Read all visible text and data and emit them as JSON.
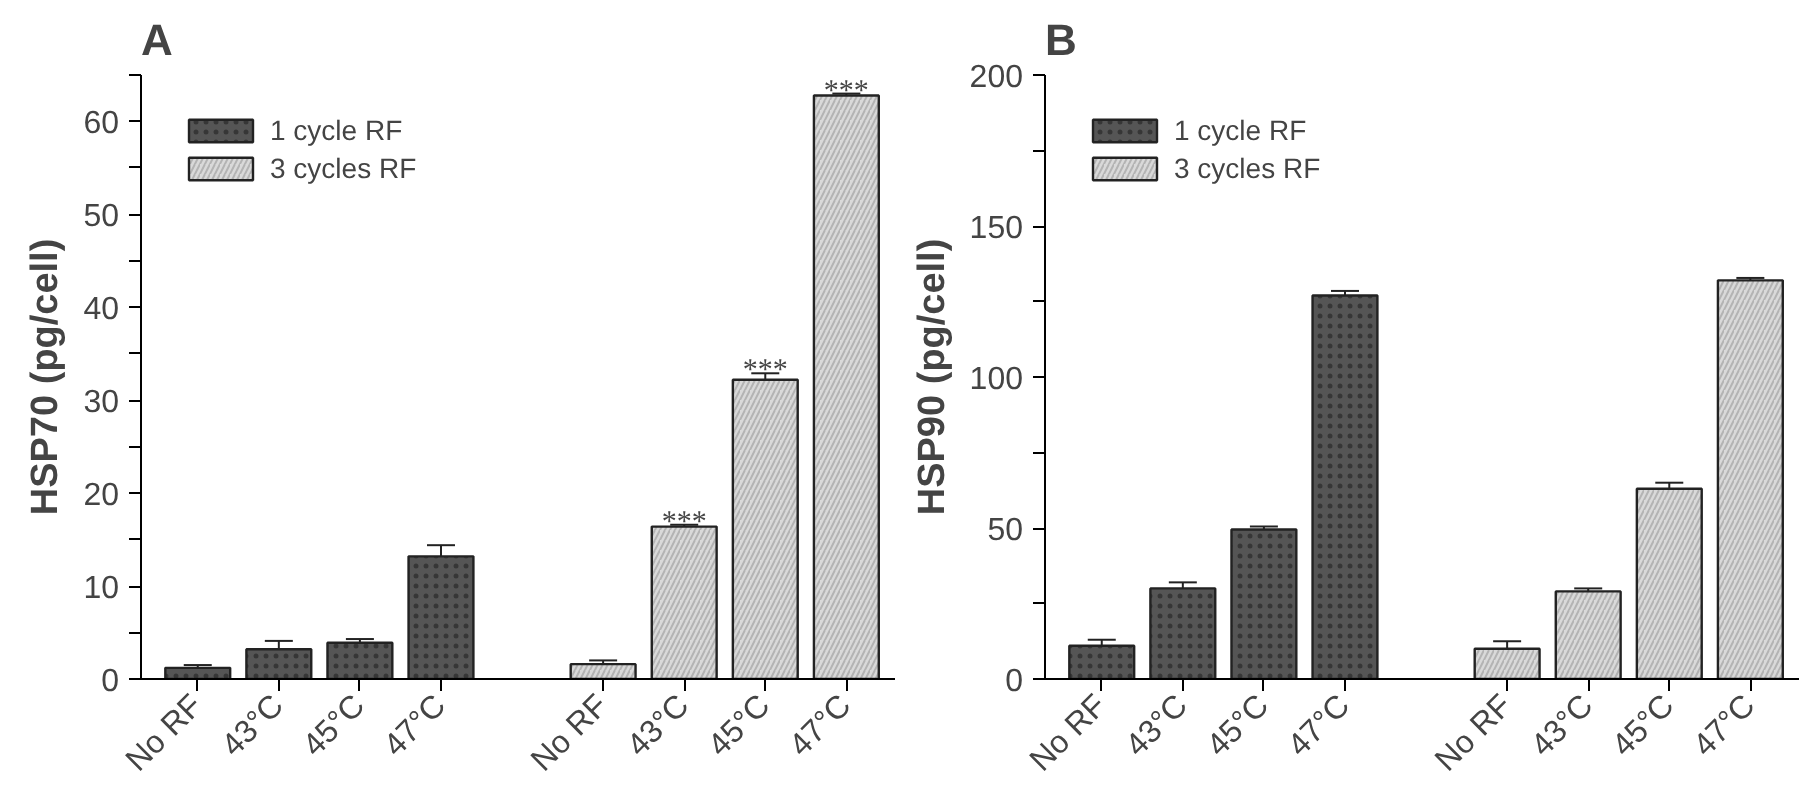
{
  "chart_data": [
    {
      "type": "bar",
      "title": "A",
      "ylabel": "HSP70 (pg/cell)",
      "categories": [
        "No RF",
        "43°C",
        "45°C",
        "47°C",
        null,
        "No RF",
        "43°C",
        "45°C",
        "47°C"
      ],
      "series": [
        {
          "name": "1 cycle RF",
          "color": "#555555",
          "values": [
            1.2,
            3.2,
            3.9,
            13.2,
            null,
            null,
            null,
            null,
            null
          ],
          "errors": [
            0.3,
            0.9,
            0.4,
            1.2,
            null,
            null,
            null,
            null,
            null
          ]
        },
        {
          "name": "3 cycles RF",
          "color": "#d9d9d9",
          "values": [
            null,
            null,
            null,
            null,
            null,
            1.6,
            16.4,
            32.2,
            62.8
          ],
          "errors": [
            null,
            null,
            null,
            null,
            null,
            0.4,
            0.2,
            0.7,
            0.2
          ],
          "value_labels": [
            null,
            null,
            null,
            null,
            null,
            null,
            "***",
            "***",
            "***"
          ]
        }
      ],
      "ylim": [
        0,
        65
      ],
      "yticks": [
        0,
        {
          "value": 5,
          "label": null
        },
        10,
        {
          "value": 15,
          "label": null
        },
        20,
        {
          "value": 25,
          "label": null
        },
        30,
        {
          "value": 35,
          "label": null
        },
        40,
        {
          "value": 45,
          "label": null
        },
        50,
        {
          "value": 55,
          "label": null
        },
        60,
        {
          "value": 65,
          "label": null
        }
      ],
      "grid": false,
      "legend": "top left"
    },
    {
      "type": "bar",
      "title": "B",
      "ylabel": "HSP90 (pg/cell)",
      "categories": [
        "No RF",
        "43°C",
        "45°C",
        "47°C",
        null,
        "No RF",
        "43°C",
        "45°C",
        "47°C"
      ],
      "series": [
        {
          "name": "1 cycle RF",
          "color": "#555555",
          "values": [
            11,
            30,
            49.5,
            127,
            null,
            null,
            null,
            null,
            null
          ],
          "errors": [
            2,
            2,
            1,
            1.5,
            null,
            null,
            null,
            null,
            null
          ]
        },
        {
          "name": "3 cycles RF",
          "color": "#d9d9d9",
          "values": [
            null,
            null,
            null,
            null,
            null,
            10,
            29,
            63,
            132
          ],
          "errors": [
            null,
            null,
            null,
            null,
            null,
            2.5,
            1,
            2,
            0.8
          ]
        }
      ],
      "ylim": [
        0,
        200
      ],
      "yticks": [
        0,
        {
          "value": 25,
          "label": null
        },
        50,
        {
          "value": 75,
          "label": null
        },
        100,
        {
          "value": 125,
          "label": null
        },
        150,
        {
          "value": 175,
          "label": null
        },
        200
      ],
      "grid": false,
      "legend": "top left"
    }
  ]
}
